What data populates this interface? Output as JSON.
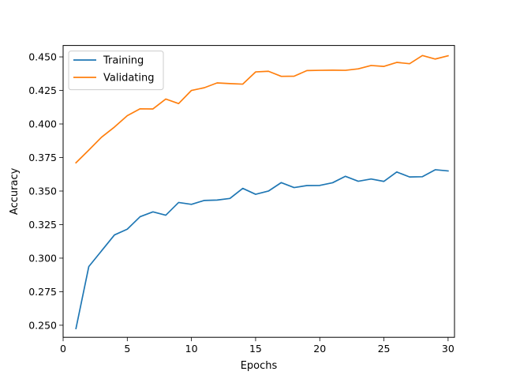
{
  "chart_data": {
    "type": "line",
    "title": "",
    "xlabel": "Epochs",
    "ylabel": "Accuracy",
    "xlim": [
      0.0,
      30.5
    ],
    "ylim": [
      0.241,
      0.4585
    ],
    "xticks": [
      0,
      5,
      10,
      15,
      20,
      25,
      30
    ],
    "xtick_labels": [
      "0",
      "5",
      "10",
      "15",
      "20",
      "25",
      "30"
    ],
    "yticks": [
      0.25,
      0.275,
      0.3,
      0.325,
      0.35,
      0.375,
      0.4,
      0.425,
      0.45
    ],
    "ytick_labels": [
      "0.250",
      "0.275",
      "0.300",
      "0.325",
      "0.350",
      "0.375",
      "0.400",
      "0.425",
      "0.450"
    ],
    "grid": false,
    "legend": "top-left",
    "x": [
      1,
      2,
      3,
      4,
      5,
      6,
      7,
      8,
      9,
      10,
      11,
      12,
      13,
      14,
      15,
      16,
      17,
      18,
      19,
      20,
      21,
      22,
      23,
      24,
      25,
      26,
      27,
      28,
      29,
      30
    ],
    "series": [
      {
        "name": "Training",
        "color": "#1f77b4",
        "values": [
          0.2475,
          0.2937,
          0.3055,
          0.3173,
          0.3216,
          0.3309,
          0.3345,
          0.332,
          0.3415,
          0.3401,
          0.343,
          0.3433,
          0.3445,
          0.352,
          0.3476,
          0.35,
          0.3563,
          0.3526,
          0.3541,
          0.3542,
          0.3562,
          0.361,
          0.3573,
          0.359,
          0.3572,
          0.3642,
          0.3605,
          0.3607,
          0.3659,
          0.365
        ]
      },
      {
        "name": "Validating",
        "color": "#ff7f0e",
        "values": [
          0.3711,
          0.3805,
          0.3902,
          0.3977,
          0.4062,
          0.4113,
          0.4112,
          0.4186,
          0.4152,
          0.425,
          0.427,
          0.4306,
          0.4301,
          0.4297,
          0.4388,
          0.4393,
          0.4355,
          0.4356,
          0.4398,
          0.44,
          0.4401,
          0.44,
          0.4411,
          0.4436,
          0.4429,
          0.4459,
          0.4449,
          0.451,
          0.4484,
          0.4508
        ]
      }
    ]
  }
}
